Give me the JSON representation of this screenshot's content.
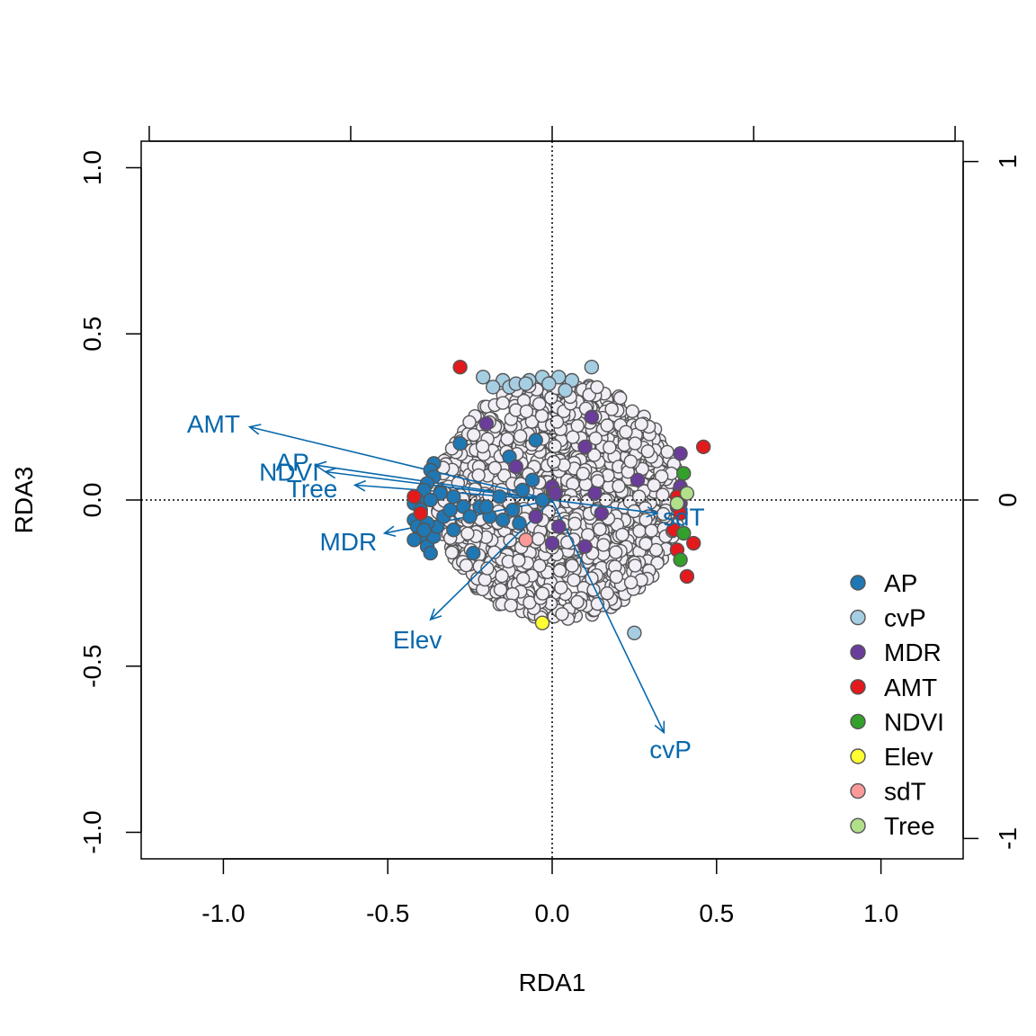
{
  "chart_data": {
    "type": "scatter",
    "title": "",
    "xlabel": "RDA1",
    "ylabel": "RDA3",
    "xlim": [
      -1.25,
      1.25
    ],
    "ylim": [
      -1.08,
      1.08
    ],
    "x_ticks": [
      {
        "value": -1.0,
        "label": "-1.0"
      },
      {
        "value": -0.5,
        "label": "-0.5"
      },
      {
        "value": 0.0,
        "label": "0.0"
      },
      {
        "value": 0.5,
        "label": "0.5"
      },
      {
        "value": 1.0,
        "label": "1.0"
      }
    ],
    "y_ticks": [
      {
        "value": -1.0,
        "label": "-1.0"
      },
      {
        "value": -0.5,
        "label": "-0.5"
      },
      {
        "value": 0.0,
        "label": "0.0"
      },
      {
        "value": 0.5,
        "label": "0.5"
      },
      {
        "value": 1.0,
        "label": "1.0"
      }
    ],
    "top_axis": {
      "range": [
        -1.02,
        1.02
      ],
      "ticks": [
        -1.0,
        -0.5,
        0.0,
        0.5,
        1.0
      ]
    },
    "right_axis": {
      "range": [
        -1.06,
        1.06
      ],
      "ticks": [
        {
          "value": -1,
          "label": "-1"
        },
        {
          "value": 0,
          "label": "0"
        },
        {
          "value": 1,
          "label": "1"
        }
      ]
    },
    "reference_lines": {
      "x": 0,
      "y": 0,
      "style": "dotted"
    },
    "background_points": {
      "color": "#f1eef6",
      "stroke": "#555555",
      "count": 1400,
      "center": [
        0.02,
        0.0
      ],
      "radius": [
        0.37,
        0.36
      ]
    },
    "arrow_color": "#0868ac",
    "arrows": [
      {
        "label": "AMT",
        "x": -0.92,
        "y": 0.22,
        "label_x": -1.03,
        "label_y": 0.23
      },
      {
        "label": "AP",
        "x": -0.72,
        "y": 0.105,
        "label_x": -0.79,
        "label_y": 0.115
      },
      {
        "label": "NDVI",
        "x": -0.69,
        "y": 0.085,
        "label_x": -0.8,
        "label_y": 0.085
      },
      {
        "label": "Tree",
        "x": -0.6,
        "y": 0.045,
        "label_x": -0.73,
        "label_y": 0.035
      },
      {
        "label": "sdT",
        "x": 0.32,
        "y": -0.04,
        "label_x": 0.4,
        "label_y": -0.05
      },
      {
        "label": "MDR",
        "x": -0.51,
        "y": -0.1,
        "label_x": -0.62,
        "label_y": -0.125
      },
      {
        "label": "Elev",
        "x": -0.37,
        "y": -0.36,
        "label_x": -0.41,
        "label_y": -0.42
      },
      {
        "label": "cvP",
        "x": 0.34,
        "y": -0.7,
        "label_x": 0.36,
        "label_y": -0.75
      }
    ],
    "legend": {
      "placement": "bottom-right",
      "entries": [
        {
          "name": "AP",
          "color": "#1f78b4"
        },
        {
          "name": "cvP",
          "color": "#a6cee3"
        },
        {
          "name": "MDR",
          "color": "#6a3d9a"
        },
        {
          "name": "AMT",
          "color": "#e31a1c"
        },
        {
          "name": "NDVI",
          "color": "#33a02c"
        },
        {
          "name": "Elev",
          "color": "#ffff33"
        },
        {
          "name": "sdT",
          "color": "#fb9a99"
        },
        {
          "name": "Tree",
          "color": "#b2df8a"
        }
      ]
    },
    "series": [
      {
        "name": "AP",
        "color": "#1f78b4",
        "points": [
          [
            -0.36,
            0.11
          ],
          [
            -0.37,
            0.09
          ],
          [
            -0.36,
            0.07
          ],
          [
            -0.38,
            0.05
          ],
          [
            -0.39,
            0.03
          ],
          [
            -0.41,
            0.0
          ],
          [
            -0.42,
            -0.01
          ],
          [
            -0.4,
            -0.03
          ],
          [
            -0.42,
            -0.06
          ],
          [
            -0.41,
            -0.08
          ],
          [
            -0.4,
            -0.11
          ],
          [
            -0.42,
            -0.12
          ],
          [
            -0.38,
            -0.14
          ],
          [
            -0.37,
            -0.16
          ],
          [
            -0.36,
            -0.11
          ],
          [
            -0.35,
            -0.08
          ],
          [
            -0.33,
            -0.05
          ],
          [
            -0.31,
            -0.03
          ],
          [
            -0.3,
            -0.09
          ],
          [
            -0.34,
            0.02
          ],
          [
            -0.3,
            0.01
          ],
          [
            -0.27,
            -0.02
          ],
          [
            -0.25,
            -0.05
          ],
          [
            -0.22,
            -0.02
          ],
          [
            -0.19,
            -0.05
          ],
          [
            -0.15,
            -0.06
          ],
          [
            -0.12,
            -0.03
          ],
          [
            -0.1,
            -0.07
          ],
          [
            -0.09,
            0.03
          ],
          [
            -0.13,
            0.13
          ],
          [
            -0.06,
            0.06
          ],
          [
            -0.05,
            0.18
          ],
          [
            -0.03,
            0.0
          ],
          [
            -0.16,
            0.01
          ],
          [
            -0.2,
            -0.02
          ],
          [
            -0.28,
            0.17
          ],
          [
            -0.24,
            -0.16
          ],
          [
            -0.38,
            -0.07
          ],
          [
            -0.39,
            -0.09
          ],
          [
            -0.37,
            0.0
          ]
        ]
      },
      {
        "name": "cvP",
        "color": "#a6cee3",
        "points": [
          [
            -0.21,
            0.37
          ],
          [
            -0.15,
            0.36
          ],
          [
            -0.13,
            0.34
          ],
          [
            -0.11,
            0.35
          ],
          [
            -0.07,
            0.36
          ],
          [
            -0.03,
            0.37
          ],
          [
            0.02,
            0.37
          ],
          [
            0.06,
            0.36
          ],
          [
            0.12,
            0.4
          ],
          [
            -0.08,
            0.35
          ],
          [
            0.04,
            0.33
          ],
          [
            -0.01,
            0.35
          ],
          [
            0.25,
            -0.4
          ],
          [
            -0.18,
            0.34
          ]
        ]
      },
      {
        "name": "MDR",
        "color": "#6a3d9a",
        "points": [
          [
            -0.2,
            0.23
          ],
          [
            0.12,
            0.25
          ],
          [
            0.1,
            0.16
          ],
          [
            0.39,
            0.14
          ],
          [
            0.26,
            0.06
          ],
          [
            0.13,
            0.02
          ],
          [
            0.15,
            -0.04
          ],
          [
            0.1,
            -0.14
          ],
          [
            0.0,
            -0.13
          ],
          [
            0.02,
            -0.08
          ],
          [
            -0.05,
            -0.05
          ],
          [
            -0.11,
            0.1
          ],
          [
            0.0,
            0.04
          ],
          [
            0.01,
            0.02
          ],
          [
            0.39,
            0.04
          ],
          [
            0.4,
            0.02
          ],
          [
            0.39,
            -0.01
          ],
          [
            0.38,
            -0.02
          ]
        ]
      },
      {
        "name": "AMT",
        "color": "#e31a1c",
        "points": [
          [
            -0.28,
            0.4
          ],
          [
            -0.42,
            0.01
          ],
          [
            -0.4,
            -0.04
          ],
          [
            0.46,
            0.16
          ],
          [
            0.38,
            0.01
          ],
          [
            0.39,
            -0.04
          ],
          [
            0.37,
            -0.09
          ],
          [
            0.43,
            -0.13
          ],
          [
            0.38,
            -0.15
          ],
          [
            0.41,
            -0.23
          ]
        ]
      },
      {
        "name": "NDVI",
        "color": "#33a02c",
        "points": [
          [
            0.4,
            0.08
          ],
          [
            0.4,
            -0.1
          ],
          [
            0.39,
            -0.18
          ]
        ]
      },
      {
        "name": "Elev",
        "color": "#ffff33",
        "points": [
          [
            -0.03,
            -0.37
          ]
        ]
      },
      {
        "name": "sdT",
        "color": "#fb9a99",
        "points": [
          [
            -0.08,
            -0.12
          ]
        ]
      },
      {
        "name": "Tree",
        "color": "#b2df8a",
        "points": [
          [
            0.41,
            0.02
          ],
          [
            0.38,
            -0.01
          ]
        ]
      }
    ]
  }
}
